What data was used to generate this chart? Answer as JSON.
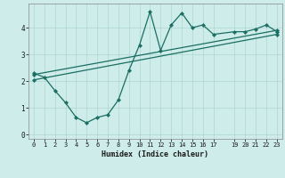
{
  "xlabel": "Humidex (Indice chaleur)",
  "background_color": "#ceecea",
  "grid_color": "#add6d2",
  "line_color": "#1a6e62",
  "xlim": [
    -0.5,
    23.5
  ],
  "ylim": [
    -0.15,
    4.9
  ],
  "xticks": [
    0,
    1,
    2,
    3,
    4,
    5,
    6,
    7,
    8,
    9,
    10,
    11,
    12,
    13,
    14,
    15,
    16,
    17,
    19,
    20,
    21,
    22,
    23
  ],
  "yticks": [
    0,
    1,
    2,
    3,
    4
  ],
  "line1_x": [
    0,
    1,
    2,
    3,
    4,
    5,
    6,
    7,
    8,
    9,
    10,
    11,
    12,
    13,
    14,
    15,
    16,
    17,
    19,
    20,
    21,
    22,
    23
  ],
  "line1_y": [
    2.3,
    2.15,
    1.65,
    1.2,
    0.65,
    0.45,
    0.65,
    0.75,
    1.3,
    2.4,
    3.35,
    4.6,
    3.15,
    4.1,
    4.55,
    4.0,
    4.1,
    3.75,
    3.85,
    3.85,
    3.95,
    4.1,
    3.85
  ],
  "line2_x": [
    0,
    23
  ],
  "line2_y": [
    2.25,
    3.9
  ],
  "line3_x": [
    0,
    23
  ],
  "line3_y": [
    2.05,
    3.75
  ],
  "figsize": [
    3.2,
    2.0
  ],
  "dpi": 100
}
